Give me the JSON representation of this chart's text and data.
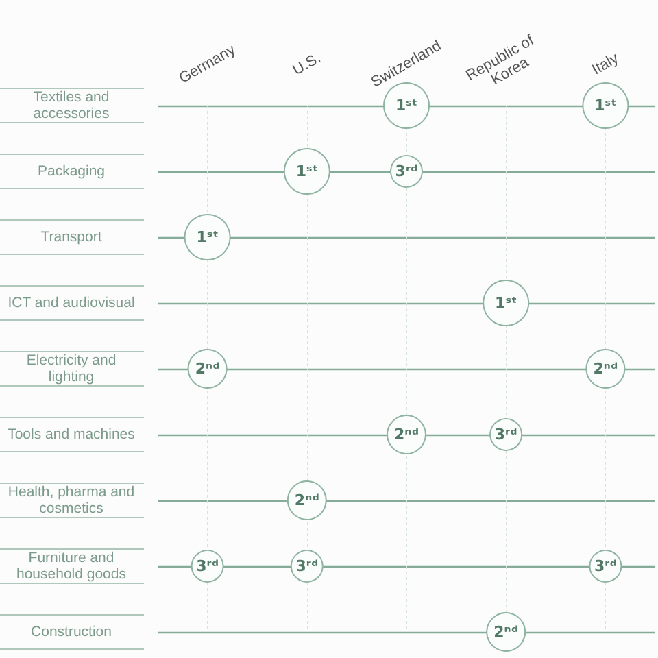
{
  "chart_data": {
    "type": "heatmap",
    "categories": [
      "Germany",
      "U.S.",
      "Switzerland",
      "Republic of Korea",
      "Italy"
    ],
    "y_categories": [
      "Textiles and accessories",
      "Packaging",
      "Transport",
      "ICT and audiovisual",
      "Electricity and lighting",
      "Tools and machines",
      "Health, pharma and cosmetics",
      "Furniture and household goods",
      "Construction"
    ],
    "cells": [
      [
        null,
        null,
        1,
        null,
        1
      ],
      [
        null,
        1,
        3,
        null,
        null
      ],
      [
        1,
        null,
        null,
        null,
        null
      ],
      [
        null,
        null,
        null,
        1,
        null
      ],
      [
        2,
        null,
        null,
        null,
        2
      ],
      [
        null,
        null,
        2,
        3,
        null
      ],
      [
        null,
        2,
        null,
        null,
        null
      ],
      [
        3,
        3,
        null,
        null,
        3
      ],
      [
        null,
        null,
        null,
        2,
        null
      ]
    ],
    "cell_labels": [
      [
        null,
        null,
        "1ˢᵗ",
        null,
        "1ˢᵗ"
      ],
      [
        null,
        "1ˢᵗ",
        "3ʳᵈ",
        null,
        null
      ],
      [
        "1ˢᵗ",
        null,
        null,
        null,
        null
      ],
      [
        null,
        null,
        null,
        "1ˢᵗ",
        null
      ],
      [
        "2ⁿᵈ",
        null,
        null,
        null,
        "2ⁿᵈ"
      ],
      [
        null,
        null,
        "2ⁿᵈ",
        "3ʳᵈ",
        null
      ],
      [
        null,
        "2ⁿᵈ",
        null,
        null,
        null
      ],
      [
        "3ʳᵈ",
        "3ʳᵈ",
        null,
        null,
        "3ʳᵈ"
      ],
      [
        null,
        null,
        null,
        "2ⁿᵈ",
        null
      ]
    ],
    "color": "#8fb3a1",
    "grid": true
  }
}
